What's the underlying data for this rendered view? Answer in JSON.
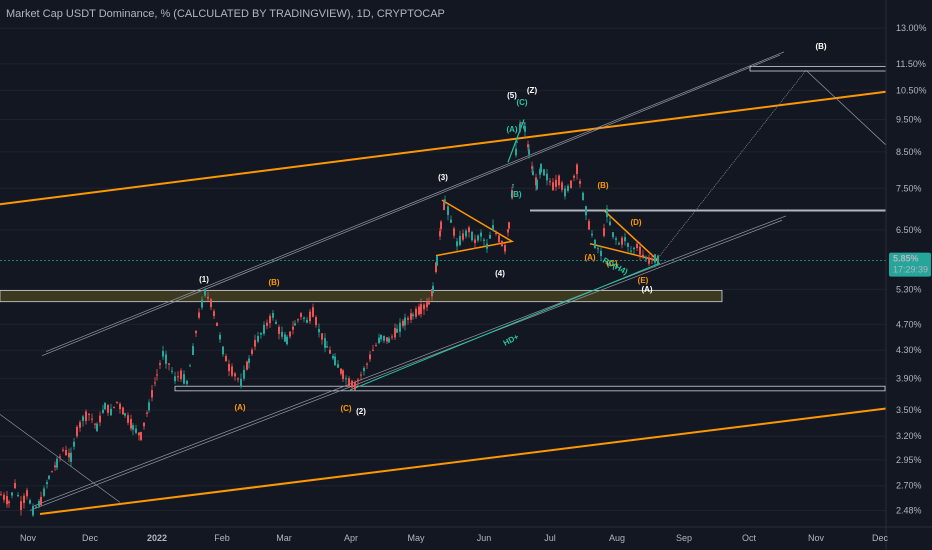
{
  "header": {
    "title": "Market Cap USDT Dominance, % (CALCULATED BY TRADINGVIEW), 1D, CRYPTOCAP"
  },
  "colors": {
    "background": "#131722",
    "up": "#26a69a",
    "down": "#ef5350",
    "orange": "#ff9800",
    "teal": "#26c6a2",
    "white_line": "#d1d4dc",
    "box_fill": "#3b3a21",
    "last_price_bg": "#26a69a"
  },
  "chart_data": {
    "type": "candlestick",
    "y_scale": "log",
    "ylim": [
      2.4,
      13.6
    ],
    "y_ticks": [
      "13.00%",
      "11.50%",
      "10.50%",
      "9.50%",
      "8.50%",
      "7.50%",
      "6.50%",
      "5.30%",
      "4.70%",
      "4.30%",
      "3.90%",
      "3.50%",
      "3.20%",
      "2.95%",
      "2.70%",
      "2.48%"
    ],
    "x_ticks": [
      "Nov",
      "Dec",
      "2022",
      "Feb",
      "Mar",
      "Apr",
      "May",
      "Jun",
      "Jul",
      "Aug",
      "Sep",
      "Oct",
      "Nov",
      "Dec"
    ],
    "last_price": "5.85%",
    "countdown": "17:29:39",
    "price_path": [
      [
        0,
        2.62
      ],
      [
        8,
        2.55
      ],
      [
        14,
        2.7
      ],
      [
        20,
        2.52
      ],
      [
        26,
        2.63
      ],
      [
        32,
        2.48
      ],
      [
        40,
        2.56
      ],
      [
        48,
        2.78
      ],
      [
        56,
        2.92
      ],
      [
        62,
        3.05
      ],
      [
        70,
        2.98
      ],
      [
        76,
        3.25
      ],
      [
        82,
        3.4
      ],
      [
        88,
        3.45
      ],
      [
        96,
        3.3
      ],
      [
        104,
        3.55
      ],
      [
        110,
        3.48
      ],
      [
        116,
        3.6
      ],
      [
        124,
        3.45
      ],
      [
        132,
        3.3
      ],
      [
        140,
        3.2
      ],
      [
        148,
        3.55
      ],
      [
        156,
        3.95
      ],
      [
        162,
        4.25
      ],
      [
        168,
        4.1
      ],
      [
        174,
        3.9
      ],
      [
        180,
        3.95
      ],
      [
        186,
        3.85
      ],
      [
        192,
        4.3
      ],
      [
        198,
        4.85
      ],
      [
        204,
        5.25
      ],
      [
        210,
        5.05
      ],
      [
        216,
        4.7
      ],
      [
        222,
        4.3
      ],
      [
        228,
        4.05
      ],
      [
        234,
        3.95
      ],
      [
        240,
        3.85
      ],
      [
        248,
        4.15
      ],
      [
        254,
        4.4
      ],
      [
        260,
        4.55
      ],
      [
        266,
        4.7
      ],
      [
        272,
        4.85
      ],
      [
        278,
        4.6
      ],
      [
        286,
        4.45
      ],
      [
        294,
        4.7
      ],
      [
        300,
        4.85
      ],
      [
        306,
        4.75
      ],
      [
        312,
        4.9
      ],
      [
        318,
        4.6
      ],
      [
        326,
        4.35
      ],
      [
        334,
        4.15
      ],
      [
        342,
        3.95
      ],
      [
        348,
        3.85
      ],
      [
        354,
        3.8
      ],
      [
        360,
        3.95
      ],
      [
        366,
        4.1
      ],
      [
        372,
        4.3
      ],
      [
        380,
        4.5
      ],
      [
        388,
        4.45
      ],
      [
        396,
        4.6
      ],
      [
        404,
        4.75
      ],
      [
        412,
        4.85
      ],
      [
        420,
        4.95
      ],
      [
        428,
        5.05
      ],
      [
        432,
        5.3
      ],
      [
        436,
        5.85
      ],
      [
        440,
        6.6
      ],
      [
        444,
        7.2
      ],
      [
        450,
        6.7
      ],
      [
        456,
        6.2
      ],
      [
        462,
        6.35
      ],
      [
        468,
        6.5
      ],
      [
        474,
        6.25
      ],
      [
        480,
        6.4
      ],
      [
        486,
        6.15
      ],
      [
        492,
        6.55
      ],
      [
        498,
        6.3
      ],
      [
        504,
        6.1
      ],
      [
        508,
        6.6
      ],
      [
        512,
        7.6
      ],
      [
        516,
        8.8
      ],
      [
        520,
        9.4
      ],
      [
        524,
        9.2
      ],
      [
        528,
        8.5
      ],
      [
        532,
        7.9
      ],
      [
        536,
        7.6
      ],
      [
        540,
        8.05
      ],
      [
        546,
        7.8
      ],
      [
        552,
        7.55
      ],
      [
        558,
        7.7
      ],
      [
        564,
        7.4
      ],
      [
        570,
        7.6
      ],
      [
        576,
        8.0
      ],
      [
        582,
        7.3
      ],
      [
        588,
        6.6
      ],
      [
        594,
        6.2
      ],
      [
        600,
        6.0
      ],
      [
        606,
        6.9
      ],
      [
        612,
        6.4
      ],
      [
        618,
        6.2
      ],
      [
        624,
        6.3
      ],
      [
        630,
        6.05
      ],
      [
        636,
        6.15
      ],
      [
        642,
        5.95
      ],
      [
        648,
        5.85
      ],
      [
        654,
        5.9
      ],
      [
        658,
        5.85
      ]
    ],
    "wave_labels_white": [
      "(1)",
      "(2)",
      "(3)",
      "(4)",
      "(5)",
      "(Z)",
      "(B)"
    ],
    "wave_labels_orange": [
      "(B)",
      "(A)",
      "(C)",
      "(B)",
      "(D)",
      "(A)",
      "(C)",
      "(E)",
      "(A)"
    ],
    "wave_labels_teal": [
      "(A)",
      "(C)",
      "(B)"
    ],
    "annotations": [
      "HD+",
      "RD(H4)"
    ]
  }
}
